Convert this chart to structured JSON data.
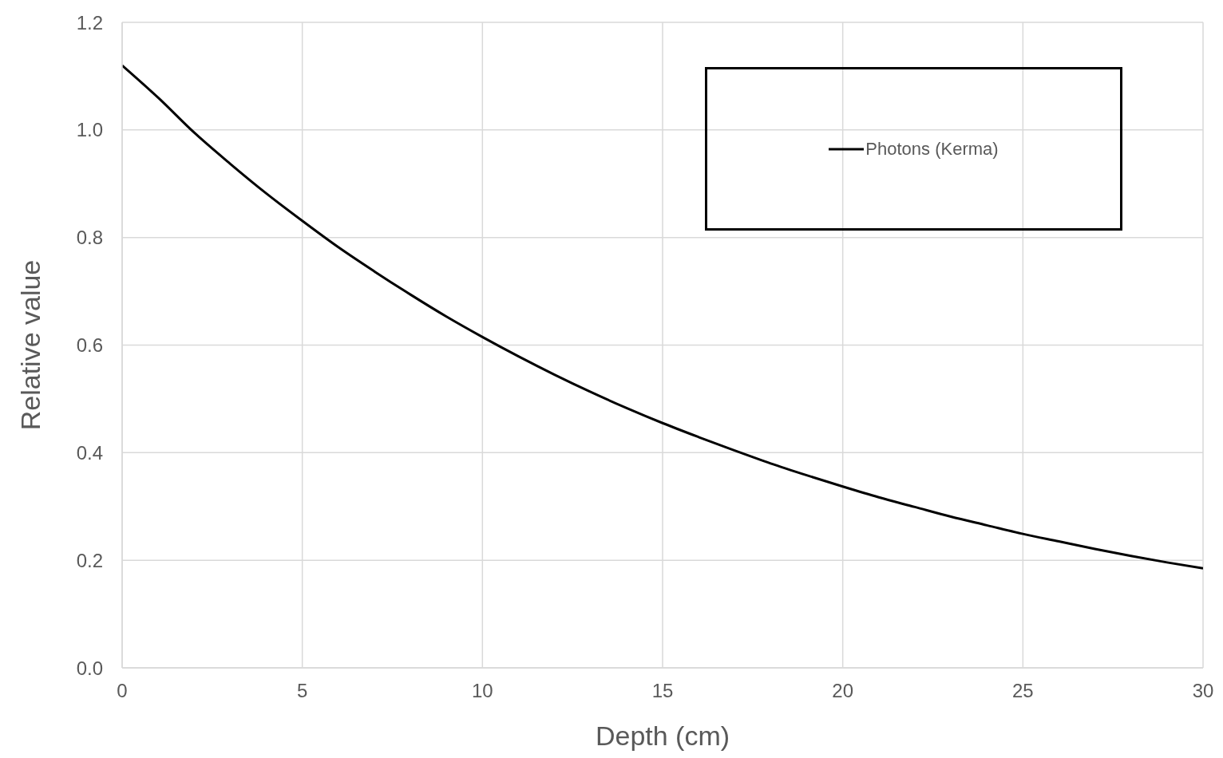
{
  "chart_data": {
    "type": "line",
    "xlabel": "Depth (cm)",
    "ylabel": "Relative value",
    "x": [
      0,
      1,
      2,
      3,
      4,
      5,
      6,
      7,
      8,
      9,
      10,
      11,
      12,
      13,
      14,
      15,
      16,
      17,
      18,
      19,
      20,
      21,
      22,
      23,
      24,
      25,
      26,
      27,
      28,
      29,
      30
    ],
    "series": [
      {
        "name": "Photons (Kerma)",
        "color": "#000000",
        "values": [
          1.12,
          1.06,
          0.995,
          0.937,
          0.882,
          0.831,
          0.782,
          0.737,
          0.694,
          0.653,
          0.615,
          0.579,
          0.545,
          0.513,
          0.483,
          0.455,
          0.429,
          0.404,
          0.38,
          0.358,
          0.337,
          0.317,
          0.299,
          0.281,
          0.265,
          0.249,
          0.235,
          0.221,
          0.208,
          0.196,
          0.185
        ]
      }
    ],
    "xlim": [
      0,
      30
    ],
    "xticks": [
      0,
      5,
      10,
      15,
      20,
      25,
      30
    ],
    "ylim": [
      0,
      1.2
    ],
    "yticks": [
      {
        "value": 0,
        "label": "0.0"
      },
      {
        "value": 0.2,
        "label": "0.2"
      },
      {
        "value": 0.4,
        "label": "0.4"
      },
      {
        "value": 0.6,
        "label": "0.6"
      },
      {
        "value": 0.8,
        "label": "0.8"
      },
      {
        "value": 1,
        "label": "1.0"
      },
      {
        "value": 1.2,
        "label": "1.2"
      }
    ],
    "grid": true,
    "legend": "top right",
    "marker": "none",
    "line_style": "solid"
  }
}
